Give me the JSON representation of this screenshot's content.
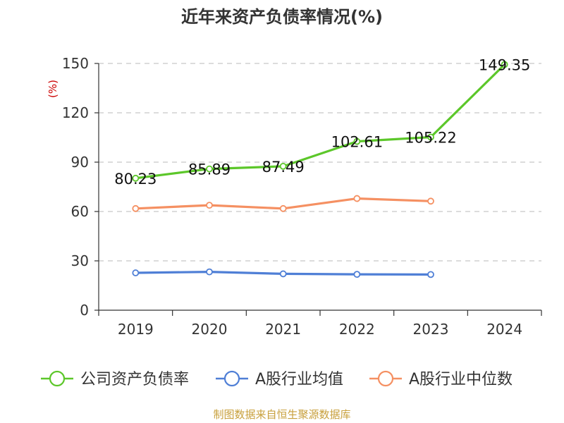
{
  "chart_data": {
    "type": "line",
    "title": "近年来资产负债率情况(%)",
    "unit_label": "(%)",
    "categories": [
      "2019",
      "2020",
      "2021",
      "2022",
      "2023",
      "2024"
    ],
    "ylim": [
      0,
      150
    ],
    "yticks": [
      0,
      30,
      60,
      90,
      120,
      150
    ],
    "grid": true,
    "legend_position": "bottom",
    "series": [
      {
        "name": "公司资产负债率",
        "color": "#5cc72a",
        "values": [
          80.23,
          85.89,
          87.49,
          102.61,
          105.22,
          149.35
        ],
        "labels": [
          "80.23",
          "85.89",
          "87.49",
          "102.61",
          "105.22",
          "149.35"
        ]
      },
      {
        "name": "A股行业均值",
        "color": "#4f7fd6",
        "values": [
          22.7,
          23.3,
          22.1,
          21.8,
          21.7,
          null
        ]
      },
      {
        "name": "A股行业中位数",
        "color": "#f59062",
        "values": [
          61.8,
          63.8,
          61.8,
          67.9,
          66.3,
          null
        ]
      }
    ],
    "source": "制图数据来自恒生聚源数据库"
  }
}
